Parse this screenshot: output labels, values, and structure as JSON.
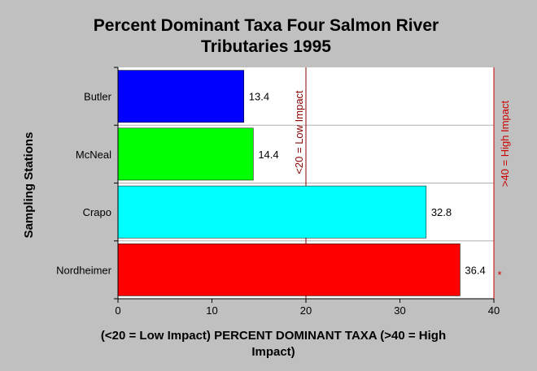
{
  "chart_data": {
    "type": "bar",
    "orientation": "horizontal",
    "title_lines": [
      "Percent Dominant Taxa Four Salmon River",
      "Tributaries 1995"
    ],
    "xlabel_lines": [
      "(<20 = Low Impact) PERCENT DOMINANT TAXA (>40 = High",
      "Impact)"
    ],
    "ylabel": "Sampling Stations",
    "categories": [
      "Butler",
      "McNeal",
      "Crapo",
      "Nordheimer"
    ],
    "values": [
      13.4,
      14.4,
      32.8,
      36.4
    ],
    "value_labels": [
      "13.4",
      "14.4",
      "32.8",
      "36.4"
    ],
    "bar_colors": [
      "#0000ff",
      "#00ff00",
      "#00ffff",
      "#ff0000"
    ],
    "xlim": [
      0,
      40
    ],
    "xticks": [
      0,
      10,
      20,
      30,
      40
    ],
    "grid": "horizontal separators",
    "reference_lines": [
      {
        "value": 20,
        "label": "<20 = Low Impact",
        "color": "#8b0000"
      },
      {
        "value": 40,
        "label": ">40 = High Impact",
        "color": "#cc0000"
      }
    ],
    "annotation": "*",
    "colors": {
      "background": "#c0c0c0",
      "plot_background": "#ffffff"
    }
  }
}
